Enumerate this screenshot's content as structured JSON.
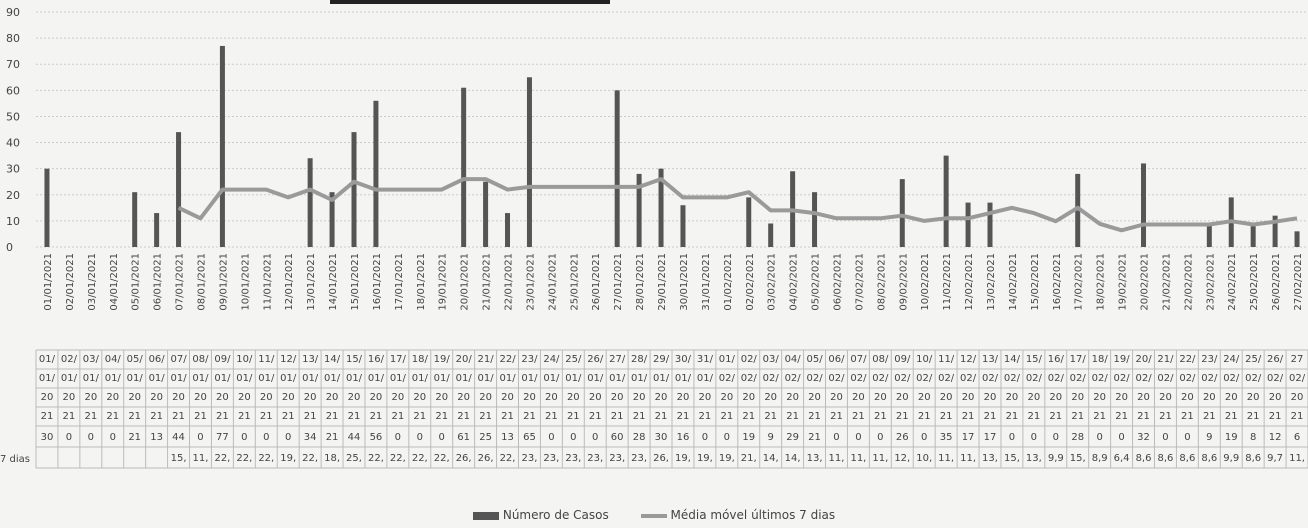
{
  "chart_data": {
    "type": "bar",
    "title": "",
    "xlabel": "",
    "ylabel": "",
    "ylim": [
      0,
      90
    ],
    "yticks": [
      0,
      10,
      20,
      30,
      40,
      50,
      60,
      70,
      80,
      90
    ],
    "grid": true,
    "legend_position": "bottom",
    "colors": {
      "bars": "#555555",
      "line": "#9a9a9a",
      "grid": "#cccccc"
    },
    "categories": [
      "01/01/2021",
      "02/01/2021",
      "03/01/2021",
      "04/01/2021",
      "05/01/2021",
      "06/01/2021",
      "07/01/2021",
      "08/01/2021",
      "09/01/2021",
      "10/01/2021",
      "11/01/2021",
      "12/01/2021",
      "13/01/2021",
      "14/01/2021",
      "15/01/2021",
      "16/01/2021",
      "17/01/2021",
      "18/01/2021",
      "19/01/2021",
      "20/01/2021",
      "21/01/2021",
      "22/01/2021",
      "23/01/2021",
      "24/01/2021",
      "25/01/2021",
      "26/01/2021",
      "27/01/2021",
      "28/01/2021",
      "29/01/2021",
      "30/01/2021",
      "31/01/2021",
      "01/02/2021",
      "02/02/2021",
      "03/02/2021",
      "04/02/2021",
      "05/02/2021",
      "06/02/2021",
      "07/02/2021",
      "08/02/2021",
      "09/02/2021",
      "10/02/2021",
      "11/02/2021",
      "12/02/2021",
      "13/02/2021",
      "14/02/2021",
      "15/02/2021",
      "16/02/2021",
      "17/02/2021",
      "18/02/2021",
      "19/02/2021",
      "20/02/2021",
      "21/02/2021",
      "22/02/2021",
      "23/02/2021",
      "24/02/2021",
      "25/02/2021",
      "26/02/2021",
      "27/02/2021"
    ],
    "series": [
      {
        "name": "Número de Casos",
        "type": "bar",
        "values": [
          30,
          0,
          0,
          0,
          21,
          13,
          44,
          0,
          77,
          0,
          0,
          0,
          34,
          21,
          44,
          56,
          0,
          0,
          0,
          61,
          25,
          13,
          65,
          0,
          0,
          0,
          60,
          28,
          30,
          16,
          0,
          0,
          19,
          9,
          29,
          21,
          0,
          0,
          0,
          26,
          0,
          35,
          17,
          17,
          0,
          0,
          0,
          28,
          0,
          0,
          32,
          0,
          0,
          9,
          19,
          8,
          12,
          6
        ]
      },
      {
        "name": "Média móvel últimos 7 dias",
        "type": "line",
        "values": [
          null,
          null,
          null,
          null,
          null,
          null,
          15,
          11,
          22,
          22,
          22,
          19,
          22,
          18,
          25,
          22,
          22,
          22,
          22,
          26,
          26,
          22,
          23,
          23,
          23,
          23,
          23,
          23,
          26,
          19,
          19,
          19,
          21,
          14,
          14,
          13,
          11,
          11,
          11,
          12,
          10,
          11,
          11,
          13,
          15,
          13,
          9.9,
          15,
          8.9,
          6.4,
          8.6,
          8.6,
          8.6,
          8.6,
          9.9,
          8.6,
          9.7,
          11
        ],
        "labels": [
          "",
          "",
          "",
          "",
          "",
          "",
          "15,",
          "11,",
          "22,",
          "22,",
          "22,",
          "19,",
          "22,",
          "18,",
          "25,",
          "22,",
          "22,",
          "22,",
          "22,",
          "26,",
          "26,",
          "22,",
          "23,",
          "23,",
          "23,",
          "23,",
          "23,",
          "23,",
          "26,",
          "19,",
          "19,",
          "19,",
          "21,",
          "14,",
          "14,",
          "13,",
          "11,",
          "11,",
          "11,",
          "12,",
          "10,",
          "11,",
          "11,",
          "13,",
          "15,",
          "13,",
          "9,9",
          "15,",
          "8,9",
          "6,4",
          "8,6",
          "8,6",
          "8,6",
          "8,6",
          "9,9",
          "8,6",
          "9,7",
          "11,"
        ]
      }
    ],
    "table": {
      "row_label_avg": "7 dias",
      "day_row": [
        "01/",
        "02/",
        "03/",
        "04/",
        "05/",
        "06/",
        "07/",
        "08/",
        "09/",
        "10/",
        "11/",
        "12/",
        "13/",
        "14/",
        "15/",
        "16/",
        "17/",
        "18/",
        "19/",
        "20/",
        "21/",
        "22/",
        "23/",
        "24/",
        "25/",
        "26/",
        "27/",
        "28/",
        "29/",
        "30/",
        "31/",
        "01/",
        "02/",
        "03/",
        "04/",
        "05/",
        "06/",
        "07/",
        "08/",
        "09/",
        "10/",
        "11/",
        "12/",
        "13/",
        "14/",
        "15/",
        "16/",
        "17/",
        "18/",
        "19/",
        "20/",
        "21/",
        "22/",
        "23/",
        "24/",
        "25/",
        "26/",
        "27"
      ],
      "month_row": [
        "01/",
        "01/",
        "01/",
        "01/",
        "01/",
        "01/",
        "01/",
        "01/",
        "01/",
        "01/",
        "01/",
        "01/",
        "01/",
        "01/",
        "01/",
        "01/",
        "01/",
        "01/",
        "01/",
        "01/",
        "01/",
        "01/",
        "01/",
        "01/",
        "01/",
        "01/",
        "01/",
        "01/",
        "01/",
        "01/",
        "01/",
        "02/",
        "02/",
        "02/",
        "02/",
        "02/",
        "02/",
        "02/",
        "02/",
        "02/",
        "02/",
        "02/",
        "02/",
        "02/",
        "02/",
        "02/",
        "02/",
        "02/",
        "02/",
        "02/",
        "02/",
        "02/",
        "02/",
        "02/",
        "02/",
        "02/",
        "02/",
        "02/"
      ],
      "year_a_row": "20",
      "year_b_row": "21"
    }
  },
  "legend": {
    "bar_label": "Número de Casos",
    "line_label": "Média móvel últimos 7 dias"
  }
}
